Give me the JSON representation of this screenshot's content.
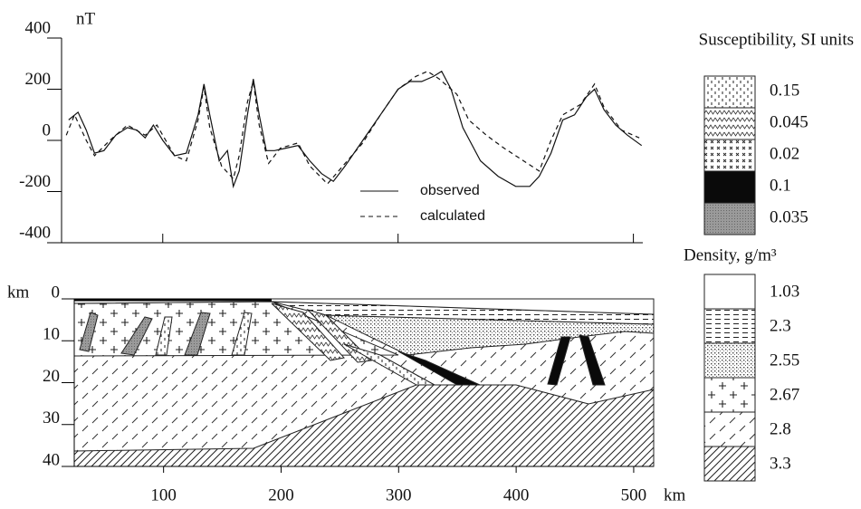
{
  "chart_data": [
    {
      "type": "line",
      "ylabel": "nT",
      "xlim": [
        14,
        508
      ],
      "xticks": [
        100,
        300,
        500
      ],
      "ylim": [
        -400,
        400
      ],
      "yticks": [
        -400,
        -200,
        0,
        200,
        400
      ],
      "series": [
        {
          "name": "observed",
          "color": "#111111",
          "dash": "none",
          "x": [
            20,
            28,
            35,
            42,
            50,
            60,
            70,
            78,
            85,
            92,
            100,
            110,
            120,
            130,
            135,
            140,
            148,
            155,
            160,
            165,
            172,
            177,
            182,
            188,
            195,
            205,
            215,
            225,
            235,
            245,
            255,
            270,
            285,
            300,
            310,
            320,
            330,
            337,
            345,
            355,
            370,
            385,
            400,
            412,
            420,
            430,
            440,
            450,
            460,
            467,
            475,
            485,
            495,
            507
          ],
          "values": [
            80,
            110,
            40,
            -50,
            -40,
            20,
            50,
            40,
            10,
            60,
            0,
            -60,
            -50,
            100,
            220,
            100,
            -80,
            -40,
            -180,
            -120,
            100,
            240,
            100,
            -40,
            -40,
            -30,
            -20,
            -80,
            -130,
            -160,
            -100,
            0,
            100,
            200,
            230,
            230,
            250,
            270,
            200,
            50,
            -80,
            -140,
            -180,
            -180,
            -140,
            -50,
            80,
            100,
            170,
            200,
            120,
            60,
            20,
            -20
          ]
        },
        {
          "name": "calculated",
          "color": "#111111",
          "dash": "5 4",
          "x": [
            18,
            25,
            35,
            42,
            55,
            70,
            85,
            95,
            110,
            120,
            130,
            135,
            140,
            150,
            160,
            165,
            172,
            177,
            182,
            190,
            200,
            215,
            225,
            240,
            255,
            270,
            285,
            300,
            315,
            325,
            335,
            350,
            360,
            375,
            390,
            410,
            420,
            430,
            440,
            455,
            467,
            475,
            490,
            505
          ],
          "values": [
            20,
            100,
            0,
            -60,
            0,
            60,
            20,
            60,
            -60,
            -80,
            80,
            210,
            50,
            -100,
            -150,
            -60,
            150,
            230,
            60,
            -90,
            -30,
            -10,
            -100,
            -170,
            -90,
            -10,
            100,
            200,
            250,
            270,
            240,
            180,
            80,
            20,
            -30,
            -90,
            -120,
            0,
            100,
            140,
            220,
            130,
            40,
            10
          ]
        }
      ]
    },
    {
      "type": "cross-section",
      "xlabel": "km",
      "ylabel": "km",
      "xlim": [
        24,
        517
      ],
      "xticks": [
        100,
        200,
        300,
        400,
        500
      ],
      "ylim": [
        0,
        40
      ],
      "yticks": [
        0,
        10,
        20,
        30,
        40
      ],
      "susceptibility": {
        "title": "Susceptibility, SI units",
        "items": [
          0.15,
          0.045,
          0.02,
          0.1,
          0.035
        ]
      },
      "density": {
        "title": "Density, g/m³",
        "items": [
          1.03,
          2.3,
          2.55,
          2.67,
          2.8,
          3.3
        ]
      }
    }
  ]
}
